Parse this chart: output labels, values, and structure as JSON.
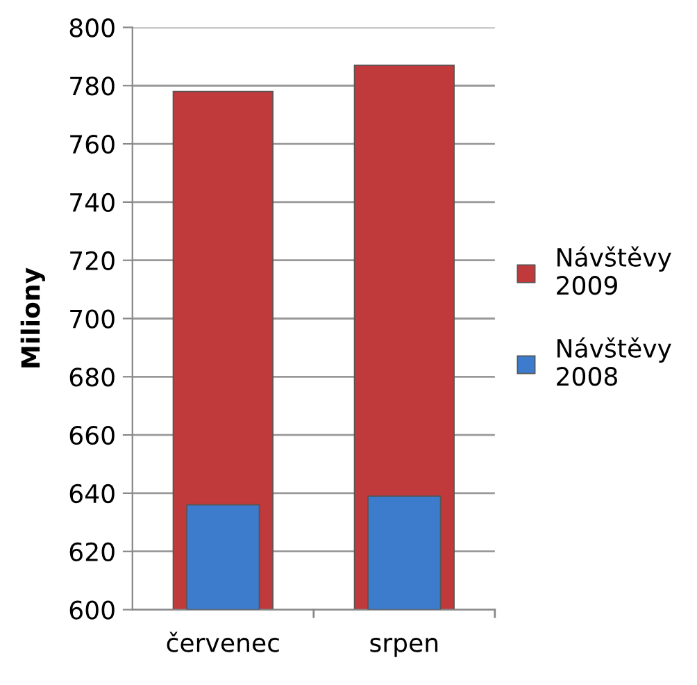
{
  "chart_data": {
    "type": "bar",
    "ylabel": "Miliony",
    "categories": [
      "červenec",
      "srpen"
    ],
    "series": [
      {
        "name": "Návštěvy 2009",
        "color": "#c0393b",
        "values": [
          778,
          787
        ]
      },
      {
        "name": "Návštěvy 2008",
        "color": "#3d7ccc",
        "values": [
          636,
          639
        ]
      }
    ],
    "ylim": [
      600,
      800
    ],
    "yticks": [
      600,
      620,
      640,
      660,
      680,
      700,
      720,
      740,
      760,
      780,
      800
    ],
    "grid": "y",
    "legend": "right"
  }
}
